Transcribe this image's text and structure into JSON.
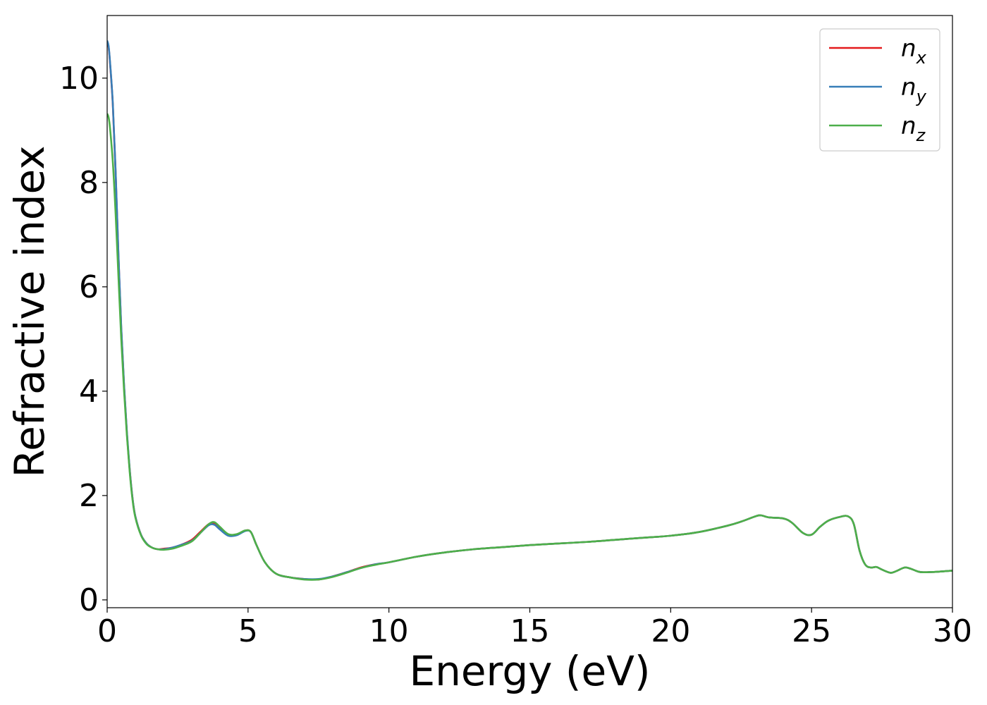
{
  "chart_data": {
    "type": "line",
    "xlabel": "Energy (eV)",
    "ylabel": "Refractive index",
    "xlim": [
      0,
      30
    ],
    "ylim": [
      -0.15,
      11.2
    ],
    "xticks": [
      0,
      5,
      10,
      15,
      20,
      25,
      30
    ],
    "yticks": [
      0,
      2,
      4,
      6,
      8,
      10
    ],
    "grid": false,
    "legend_position": "top-right",
    "series": [
      {
        "name": "n_x",
        "legend_base": "n",
        "legend_sub": "x",
        "color": "#e41a1c",
        "x": [
          0,
          0.05,
          0.1,
          0.2,
          0.3,
          0.4,
          0.5,
          0.6,
          0.7,
          0.8,
          0.9,
          1.0,
          1.2,
          1.4,
          1.6,
          1.8,
          2.0,
          2.3,
          2.6,
          3.0,
          3.3,
          3.6,
          3.8,
          4.0,
          4.3,
          4.6,
          4.9,
          5.1,
          5.3,
          5.6,
          6.0,
          6.5,
          7.0,
          7.5,
          8.0,
          8.5,
          9.0,
          9.5,
          10,
          11,
          12,
          13,
          14,
          15,
          16,
          17,
          18,
          19,
          20,
          21,
          22,
          22.5,
          23,
          23.2,
          23.5,
          24,
          24.3,
          24.7,
          25.0,
          25.3,
          25.6,
          26.0,
          26.3,
          26.5,
          26.7,
          26.9,
          27.1,
          27.3,
          27.5,
          27.8,
          28.0,
          28.3,
          28.5,
          28.8,
          29.0,
          29.5,
          30
        ],
        "y": [
          10.68,
          10.6,
          10.3,
          9.5,
          8.2,
          6.6,
          5.2,
          4.1,
          3.2,
          2.5,
          1.95,
          1.6,
          1.25,
          1.08,
          1.0,
          0.97,
          0.98,
          1.0,
          1.05,
          1.15,
          1.3,
          1.45,
          1.47,
          1.38,
          1.25,
          1.25,
          1.33,
          1.3,
          1.05,
          0.72,
          0.5,
          0.43,
          0.4,
          0.39,
          0.45,
          0.53,
          0.62,
          0.68,
          0.72,
          0.83,
          0.91,
          0.97,
          1.01,
          1.05,
          1.08,
          1.11,
          1.15,
          1.19,
          1.23,
          1.3,
          1.42,
          1.5,
          1.6,
          1.62,
          1.58,
          1.56,
          1.48,
          1.28,
          1.25,
          1.4,
          1.52,
          1.59,
          1.6,
          1.45,
          0.95,
          0.68,
          0.62,
          0.63,
          0.58,
          0.52,
          0.55,
          0.62,
          0.6,
          0.54,
          0.53,
          0.54,
          0.56
        ]
      },
      {
        "name": "n_y",
        "legend_base": "n",
        "legend_sub": "y",
        "color": "#377eb8",
        "x": [
          0,
          0.05,
          0.1,
          0.2,
          0.3,
          0.4,
          0.5,
          0.6,
          0.7,
          0.8,
          0.9,
          1.0,
          1.2,
          1.4,
          1.6,
          1.8,
          2.0,
          2.3,
          2.6,
          3.0,
          3.3,
          3.6,
          3.8,
          4.0,
          4.3,
          4.6,
          4.9,
          5.1,
          5.3,
          5.6,
          6.0,
          6.5,
          7.0,
          7.5,
          8.0,
          8.5,
          9.0,
          9.5,
          10,
          11,
          12,
          13,
          14,
          15,
          16,
          17,
          18,
          19,
          20,
          21,
          22,
          22.5,
          23,
          23.2,
          23.5,
          24,
          24.3,
          24.7,
          25.0,
          25.3,
          25.6,
          26.0,
          26.3,
          26.5,
          26.7,
          26.9,
          27.1,
          27.3,
          27.5,
          27.8,
          28.0,
          28.3,
          28.5,
          28.8,
          29.0,
          29.5,
          30
        ],
        "y": [
          10.72,
          10.62,
          10.32,
          9.52,
          8.22,
          6.62,
          5.22,
          4.12,
          3.22,
          2.5,
          1.95,
          1.6,
          1.25,
          1.08,
          1.0,
          0.97,
          0.97,
          1.0,
          1.05,
          1.13,
          1.28,
          1.43,
          1.44,
          1.35,
          1.23,
          1.24,
          1.32,
          1.3,
          1.05,
          0.72,
          0.5,
          0.43,
          0.4,
          0.4,
          0.45,
          0.53,
          0.61,
          0.68,
          0.72,
          0.83,
          0.91,
          0.97,
          1.01,
          1.05,
          1.08,
          1.11,
          1.15,
          1.19,
          1.23,
          1.3,
          1.42,
          1.5,
          1.6,
          1.62,
          1.58,
          1.56,
          1.48,
          1.28,
          1.25,
          1.4,
          1.52,
          1.59,
          1.6,
          1.45,
          0.95,
          0.68,
          0.62,
          0.63,
          0.58,
          0.52,
          0.55,
          0.62,
          0.6,
          0.54,
          0.53,
          0.54,
          0.56
        ]
      },
      {
        "name": "n_z",
        "legend_base": "n",
        "legend_sub": "z",
        "color": "#4daf4a",
        "x": [
          0,
          0.05,
          0.1,
          0.2,
          0.3,
          0.4,
          0.5,
          0.6,
          0.7,
          0.8,
          0.9,
          1.0,
          1.2,
          1.4,
          1.6,
          1.8,
          2.0,
          2.3,
          2.6,
          3.0,
          3.3,
          3.6,
          3.8,
          4.0,
          4.3,
          4.6,
          4.9,
          5.1,
          5.3,
          5.6,
          6.0,
          6.5,
          7.0,
          7.5,
          8.0,
          8.5,
          9.0,
          9.5,
          10,
          11,
          12,
          13,
          14,
          15,
          16,
          17,
          18,
          19,
          20,
          21,
          22,
          22.5,
          23,
          23.2,
          23.5,
          24,
          24.3,
          24.7,
          25.0,
          25.3,
          25.6,
          26.0,
          26.3,
          26.5,
          26.7,
          26.9,
          27.1,
          27.3,
          27.5,
          27.8,
          28.0,
          28.3,
          28.5,
          28.8,
          29.0,
          29.5,
          30
        ],
        "y": [
          9.32,
          9.25,
          9.05,
          8.4,
          7.4,
          6.2,
          5.0,
          4.0,
          3.15,
          2.45,
          1.92,
          1.58,
          1.24,
          1.07,
          1.0,
          0.97,
          0.96,
          0.98,
          1.03,
          1.12,
          1.28,
          1.45,
          1.49,
          1.4,
          1.26,
          1.26,
          1.33,
          1.3,
          1.05,
          0.72,
          0.5,
          0.43,
          0.39,
          0.39,
          0.44,
          0.52,
          0.61,
          0.67,
          0.72,
          0.83,
          0.91,
          0.97,
          1.01,
          1.05,
          1.08,
          1.11,
          1.15,
          1.19,
          1.23,
          1.3,
          1.42,
          1.5,
          1.6,
          1.62,
          1.58,
          1.56,
          1.48,
          1.28,
          1.25,
          1.4,
          1.52,
          1.59,
          1.6,
          1.45,
          0.95,
          0.68,
          0.62,
          0.63,
          0.58,
          0.52,
          0.55,
          0.62,
          0.6,
          0.54,
          0.53,
          0.54,
          0.56
        ]
      }
    ]
  }
}
